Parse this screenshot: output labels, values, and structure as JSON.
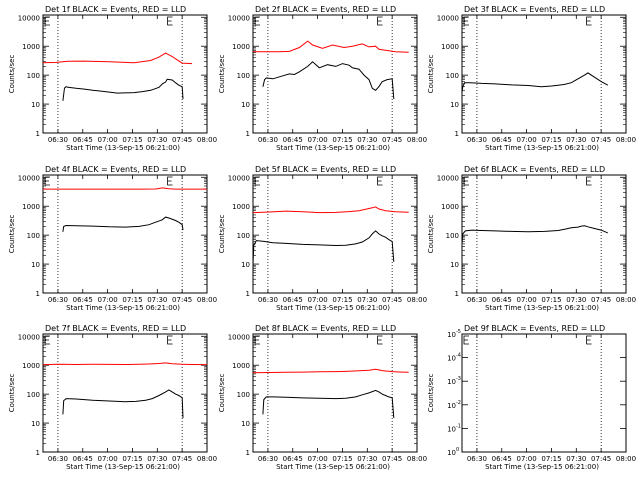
{
  "chart_data": [
    {
      "type": "line",
      "title": "Det 1f BLACK = Events, RED = LLD",
      "xlabel": "Start Time (13-Sep-15 06:21:00)",
      "ylabel": "Counts/sec",
      "xticks": [
        "06:30",
        "06:45",
        "07:00",
        "07:15",
        "07:30",
        "07:45",
        "08:00"
      ],
      "yticks": [
        "1",
        "10",
        "100",
        "1000",
        "10000"
      ],
      "ylog": true,
      "yrange": [
        1,
        12000
      ],
      "xrange": [
        0,
        99
      ],
      "markers": [
        9,
        84
      ],
      "flags": [
        0,
        74
      ],
      "series": [
        {
          "color": "#ff0000",
          "x": [
            0,
            8,
            15,
            25,
            40,
            55,
            65,
            70,
            74,
            78,
            82,
            84,
            90
          ],
          "y": [
            270,
            275,
            300,
            305,
            290,
            270,
            320,
            420,
            580,
            440,
            310,
            260,
            250
          ]
        },
        {
          "color": "#000000",
          "x": [
            12,
            13,
            14,
            15,
            20,
            25,
            30,
            35,
            45,
            55,
            60,
            65,
            70,
            72,
            74,
            75,
            78,
            80,
            82,
            84,
            84.5
          ],
          "y": [
            13,
            36,
            40,
            38,
            35,
            33,
            30,
            28,
            24,
            25,
            27,
            30,
            38,
            50,
            58,
            72,
            68,
            55,
            45,
            40,
            15
          ]
        }
      ]
    },
    {
      "type": "line",
      "title": "Det 2f BLACK = Events, RED = LLD",
      "xlabel": "Start Time (13-Sep-15 06:21:00)",
      "ylabel": "Counts/sec",
      "xticks": [
        "06:30",
        "06:45",
        "07:00",
        "07:15",
        "07:30",
        "07:45",
        "08:00"
      ],
      "yticks": [
        "1",
        "10",
        "100",
        "1000",
        "10000"
      ],
      "ylog": true,
      "yrange": [
        1,
        12000
      ],
      "xrange": [
        0,
        99
      ],
      "markers": [
        9,
        84
      ],
      "flags": [
        0,
        74
      ],
      "series": [
        {
          "color": "#ff0000",
          "x": [
            0,
            8,
            15,
            22,
            28,
            33,
            36,
            42,
            48,
            55,
            60,
            66,
            70,
            74,
            76,
            80,
            86,
            94
          ],
          "y": [
            640,
            640,
            640,
            660,
            900,
            1500,
            1100,
            850,
            1100,
            900,
            1000,
            1200,
            950,
            1000,
            780,
            720,
            640,
            620
          ]
        },
        {
          "color": "#000000",
          "x": [
            6,
            7,
            8,
            12,
            18,
            22,
            25,
            28,
            33,
            36,
            40,
            45,
            50,
            54,
            58,
            60,
            64,
            67,
            70,
            72,
            74,
            76,
            78,
            81,
            84,
            85
          ],
          "y": [
            40,
            70,
            80,
            75,
            95,
            110,
            105,
            130,
            200,
            290,
            180,
            230,
            200,
            250,
            220,
            180,
            160,
            100,
            70,
            35,
            30,
            40,
            60,
            70,
            75,
            15
          ]
        }
      ]
    },
    {
      "type": "line",
      "title": "Det 3f BLACK = Events, RED = LLD",
      "xlabel": "Start Time (13-Sep-15 06:21:00)",
      "ylabel": "Counts/sec",
      "xticks": [
        "06:30",
        "06:45",
        "07:00",
        "07:15",
        "07:30",
        "07:45",
        "08:00"
      ],
      "yticks": [
        "1",
        "10",
        "100",
        "1000",
        "10000"
      ],
      "ylog": true,
      "yrange": [
        1,
        12000
      ],
      "xrange": [
        0,
        99
      ],
      "markers": [
        9,
        84
      ],
      "flags": [
        0,
        74
      ],
      "series": [
        {
          "color": "#000000",
          "x": [
            0,
            0.5,
            1.5,
            5,
            12,
            20,
            30,
            40,
            48,
            54,
            58,
            62,
            66,
            70,
            74,
            76,
            80,
            84,
            88
          ],
          "y": [
            25,
            40,
            55,
            55,
            52,
            50,
            46,
            44,
            40,
            42,
            45,
            48,
            55,
            75,
            100,
            120,
            85,
            60,
            45
          ]
        }
      ]
    },
    {
      "type": "line",
      "title": "Det 4f BLACK = Events, RED = LLD",
      "xlabel": "Start Time (13-Sep-15 06:21:00)",
      "ylabel": "Counts/sec",
      "xticks": [
        "06:30",
        "06:45",
        "07:00",
        "07:15",
        "07:30",
        "07:45",
        "08:00"
      ],
      "yticks": [
        "1",
        "10",
        "100",
        "1000",
        "10000"
      ],
      "ylog": true,
      "yrange": [
        1,
        12000
      ],
      "xrange": [
        0,
        99
      ],
      "markers": [
        9,
        84
      ],
      "flags": [
        0,
        74
      ],
      "series": [
        {
          "color": "#ff0000",
          "x": [
            0,
            15,
            30,
            45,
            60,
            68,
            72,
            76,
            80,
            90,
            99
          ],
          "y": [
            3900,
            3900,
            3900,
            3900,
            3900,
            3950,
            4300,
            4000,
            3900,
            3900,
            3900
          ]
        },
        {
          "color": "#000000",
          "x": [
            12,
            12.5,
            14,
            20,
            30,
            40,
            50,
            58,
            64,
            68,
            72,
            74,
            76,
            80,
            82,
            84,
            84.5
          ],
          "y": [
            130,
            200,
            215,
            210,
            205,
            195,
            190,
            200,
            230,
            280,
            340,
            420,
            390,
            320,
            280,
            230,
            150
          ]
        }
      ]
    },
    {
      "type": "line",
      "title": "Det 5f BLACK = Events, RED = LLD",
      "xlabel": "Start Time (13-Sep-15 06:21:00)",
      "ylabel": "Counts/sec",
      "xticks": [
        "06:30",
        "06:45",
        "07:00",
        "07:15",
        "07:30",
        "07:45",
        "08:00"
      ],
      "yticks": [
        "1",
        "10",
        "100",
        "1000",
        "10000"
      ],
      "ylog": true,
      "yrange": [
        1,
        12000
      ],
      "xrange": [
        0,
        99
      ],
      "markers": [
        9,
        84
      ],
      "flags": [
        0,
        74
      ],
      "series": [
        {
          "color": "#ff0000",
          "x": [
            0,
            10,
            20,
            30,
            40,
            50,
            58,
            64,
            68,
            72,
            74,
            76,
            80,
            86,
            94
          ],
          "y": [
            600,
            630,
            680,
            640,
            600,
            610,
            650,
            700,
            780,
            880,
            950,
            800,
            700,
            640,
            620
          ]
        },
        {
          "color": "#000000",
          "x": [
            0,
            0.5,
            2,
            6,
            12,
            20,
            30,
            40,
            50,
            56,
            62,
            66,
            70,
            72,
            74,
            76,
            78,
            80,
            82,
            84,
            85
          ],
          "y": [
            10,
            45,
            65,
            62,
            55,
            52,
            48,
            46,
            44,
            45,
            50,
            58,
            80,
            110,
            140,
            110,
            95,
            85,
            70,
            60,
            12
          ]
        }
      ]
    },
    {
      "type": "line",
      "title": "Det 6f BLACK = Events, RED = LLD",
      "xlabel": "Start Time (13-Sep-15 06:21:00)",
      "ylabel": "Counts/sec",
      "xticks": [
        "06:30",
        "06:45",
        "07:00",
        "07:15",
        "07:30",
        "07:45",
        "08:00"
      ],
      "yticks": [
        "1",
        "10",
        "100",
        "1000",
        "10000"
      ],
      "ylog": true,
      "yrange": [
        1,
        12000
      ],
      "xrange": [
        0,
        99
      ],
      "markers": [
        9,
        84
      ],
      "flags": [
        0,
        74
      ],
      "series": [
        {
          "color": "#000000",
          "x": [
            0,
            0.5,
            2,
            6,
            12,
            20,
            30,
            40,
            50,
            58,
            62,
            66,
            70,
            72,
            74,
            76,
            80,
            84,
            88
          ],
          "y": [
            50,
            110,
            140,
            150,
            145,
            140,
            135,
            132,
            135,
            145,
            160,
            180,
            190,
            205,
            210,
            195,
            170,
            150,
            120
          ]
        }
      ]
    },
    {
      "type": "line",
      "title": "Det 7f BLACK = Events, RED = LLD",
      "xlabel": "Start Time (13-Sep-15 06:21:00)",
      "ylabel": "Counts/sec",
      "xticks": [
        "06:30",
        "06:45",
        "07:00",
        "07:15",
        "07:30",
        "07:45",
        "08:00"
      ],
      "yticks": [
        "1",
        "10",
        "100",
        "1000",
        "10000"
      ],
      "ylog": true,
      "yrange": [
        1,
        12000
      ],
      "xrange": [
        0,
        99
      ],
      "markers": [
        9,
        84
      ],
      "flags": [
        0,
        74
      ],
      "series": [
        {
          "color": "#ff0000",
          "x": [
            0,
            10,
            20,
            30,
            40,
            50,
            58,
            64,
            70,
            74,
            78,
            84,
            90,
            99
          ],
          "y": [
            1050,
            1080,
            1060,
            1080,
            1070,
            1060,
            1080,
            1100,
            1150,
            1200,
            1120,
            1080,
            1060,
            1050
          ]
        },
        {
          "color": "#000000",
          "x": [
            12,
            12.5,
            14,
            20,
            30,
            40,
            50,
            56,
            62,
            66,
            70,
            74,
            76,
            78,
            80,
            82,
            84,
            84.5
          ],
          "y": [
            20,
            60,
            70,
            68,
            62,
            58,
            55,
            56,
            62,
            70,
            90,
            120,
            140,
            120,
            100,
            90,
            75,
            15
          ]
        }
      ]
    },
    {
      "type": "line",
      "title": "Det 8f BLACK = Events, RED = LLD",
      "xlabel": "Start Time (13-Sep-15 06:21:00)",
      "ylabel": "Counts/sec",
      "xticks": [
        "06:30",
        "06:45",
        "07:00",
        "07:15",
        "07:30",
        "07:45",
        "08:00"
      ],
      "yticks": [
        "1",
        "10",
        "100",
        "1000",
        "10000"
      ],
      "ylog": true,
      "yrange": [
        1,
        12000
      ],
      "xrange": [
        0,
        99
      ],
      "markers": [
        9,
        84
      ],
      "flags": [
        0,
        74
      ],
      "series": [
        {
          "color": "#ff0000",
          "x": [
            0,
            10,
            20,
            30,
            40,
            50,
            58,
            64,
            70,
            74,
            78,
            84,
            90,
            94
          ],
          "y": [
            550,
            560,
            570,
            580,
            590,
            600,
            620,
            640,
            670,
            720,
            650,
            600,
            580,
            570
          ]
        },
        {
          "color": "#000000",
          "x": [
            6,
            6.5,
            8,
            12,
            20,
            30,
            40,
            50,
            56,
            62,
            66,
            70,
            74,
            76,
            78,
            80,
            82,
            84,
            85
          ],
          "y": [
            20,
            65,
            80,
            80,
            78,
            74,
            72,
            70,
            72,
            80,
            95,
            110,
            135,
            120,
            100,
            90,
            80,
            75,
            15
          ]
        }
      ]
    },
    {
      "type": "line",
      "title": "Det 9f BLACK = Events, RED = LLD",
      "xlabel": "Start Time (13-Sep-15 06:21:00)",
      "ylabel": "Counts/sec",
      "xticks": [
        "06:30",
        "06:45",
        "07:00",
        "07:15",
        "07:30",
        "07:45",
        "08:00"
      ],
      "yticks": [
        [
          "10",
          "0"
        ],
        [
          "10",
          "-1"
        ],
        [
          "10",
          "-2"
        ],
        [
          "10",
          "-3"
        ],
        [
          "10",
          "-4"
        ],
        [
          "10",
          "-5"
        ]
      ],
      "ylog": false,
      "yrange": [
        0,
        5
      ],
      "xrange": [
        0,
        99
      ],
      "markers": [
        9,
        84
      ],
      "flags": [
        0,
        74
      ],
      "series": []
    }
  ]
}
